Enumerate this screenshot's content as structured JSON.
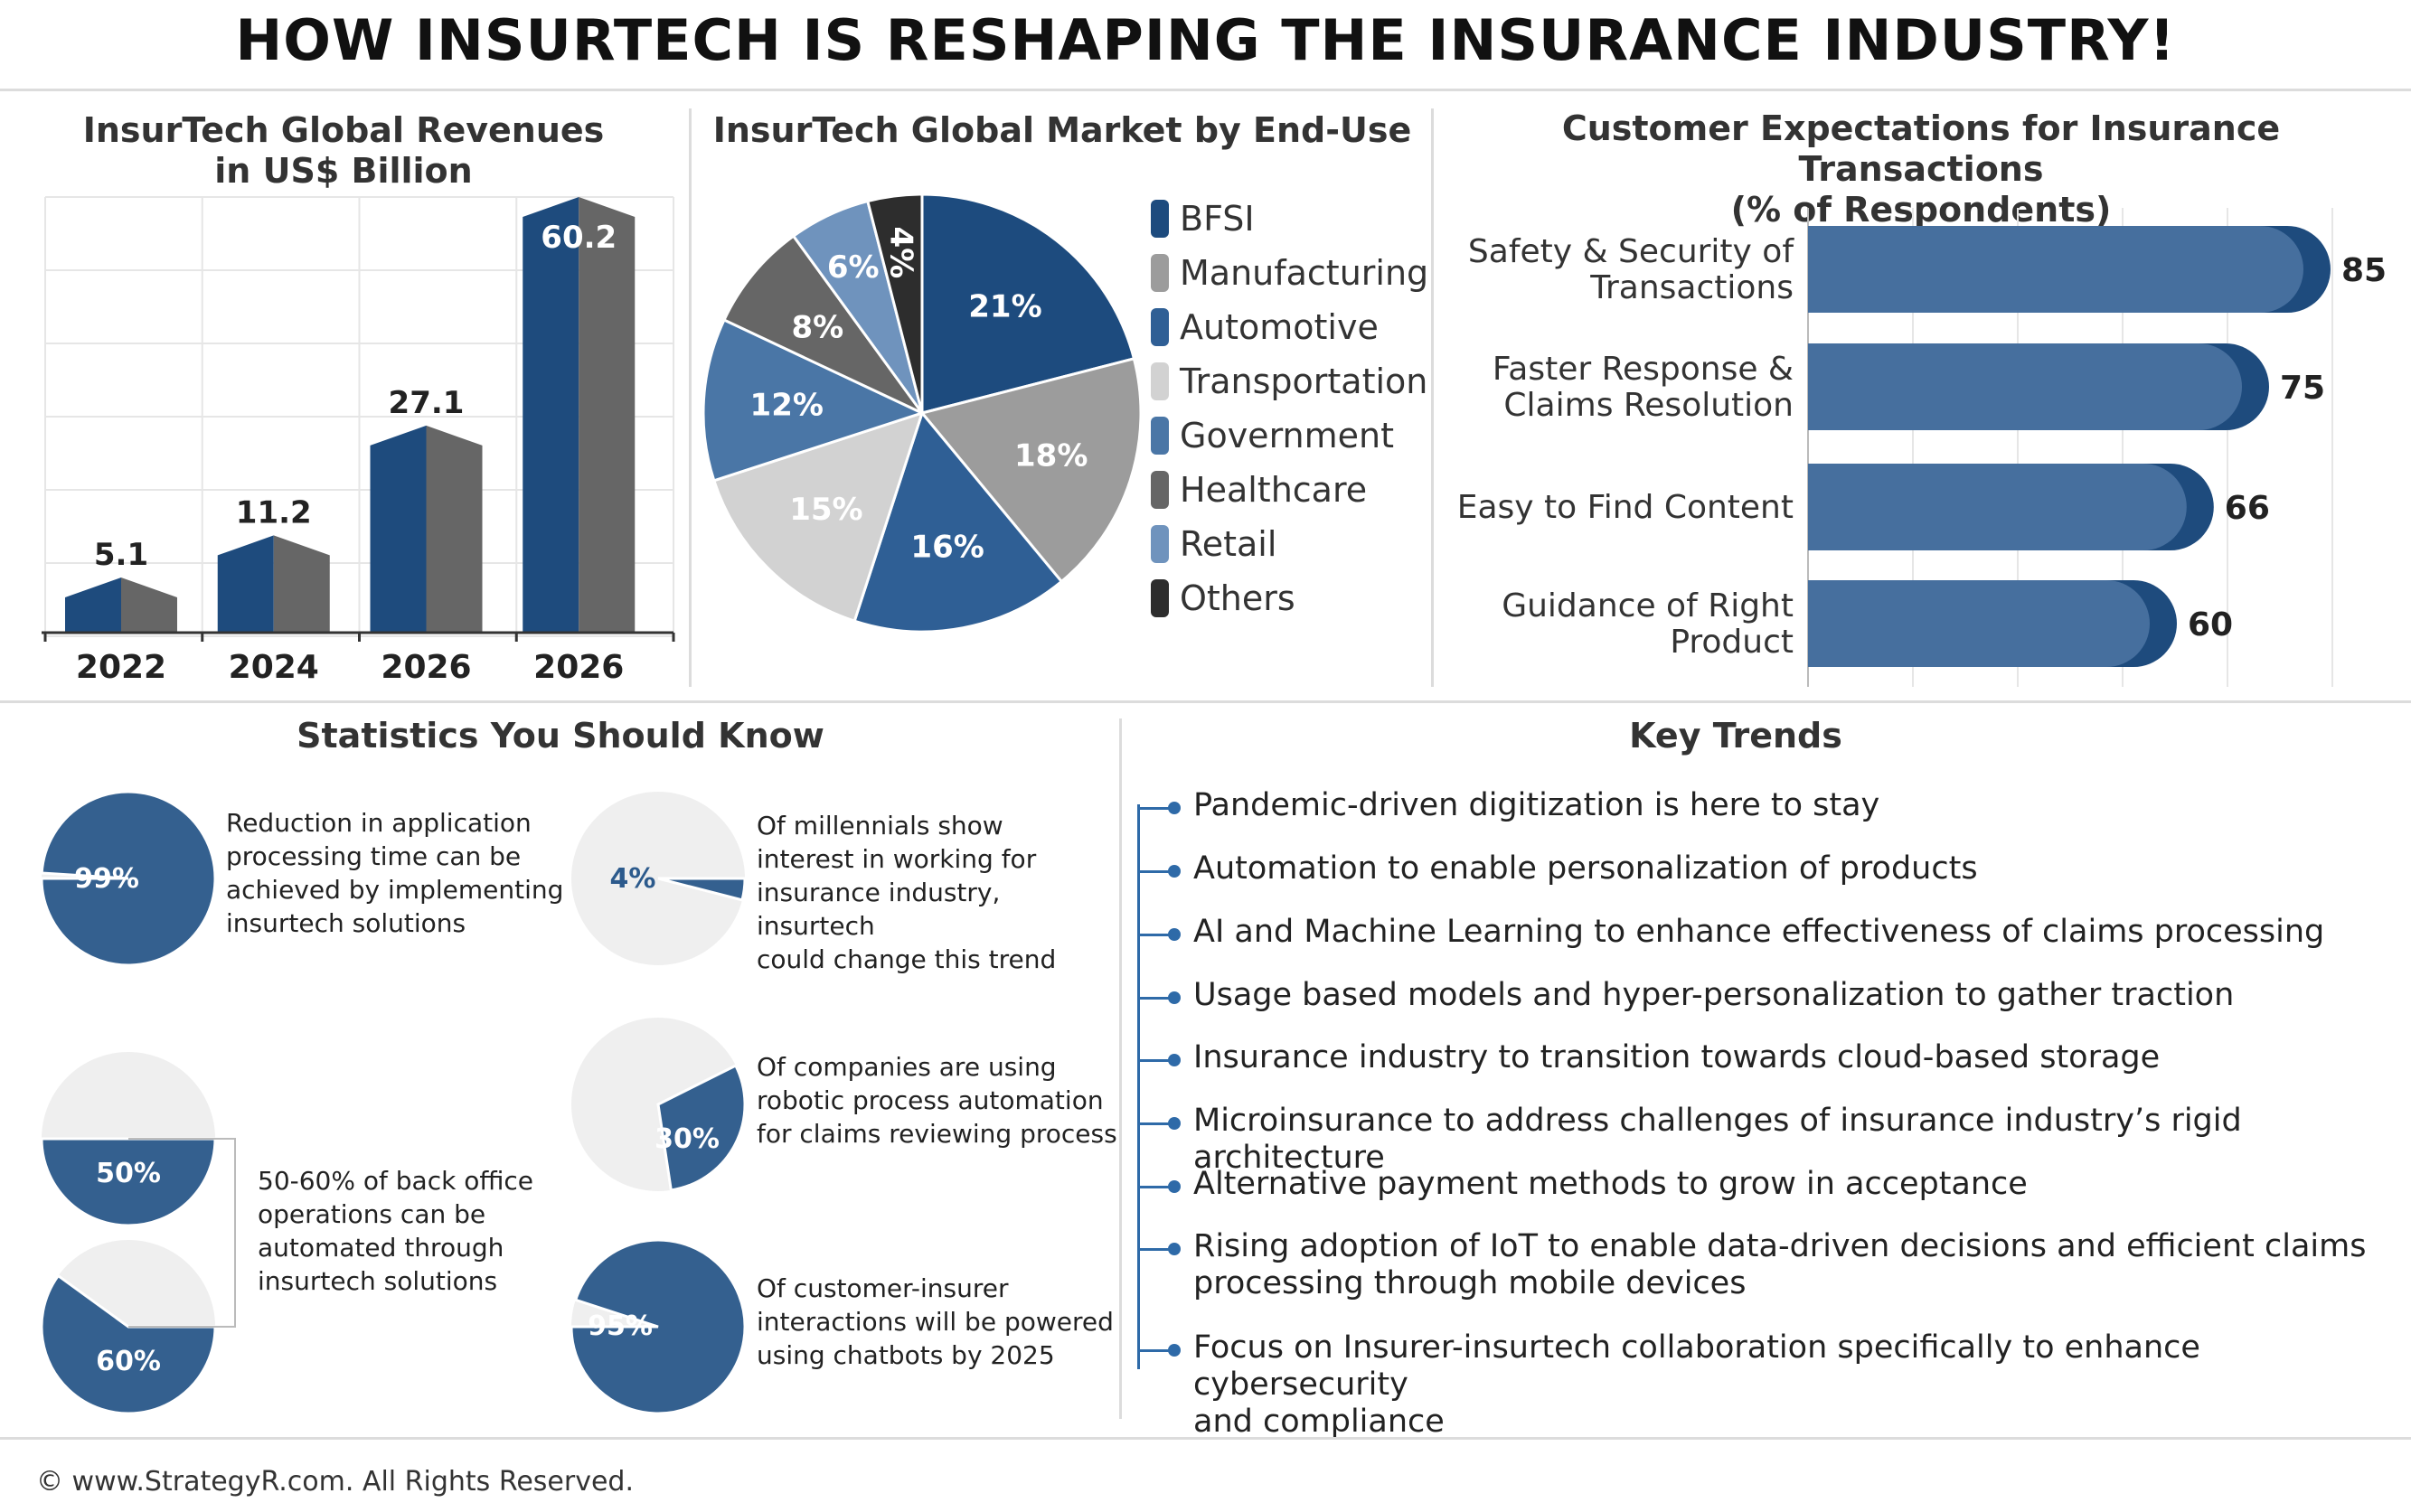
{
  "page_title": "HOW INSURTECH IS RESHAPING THE INSURANCE INDUSTRY!",
  "colors": {
    "navy": "#1e4b7d",
    "gray": "#666666",
    "bar_blue": "#466f9e",
    "light": "#efefef"
  },
  "chart_data": [
    {
      "type": "bar",
      "title_line1": "InsurTech Global Revenues",
      "title_line2": "in US$ Billion",
      "categories": [
        "2022",
        "2024",
        "2026",
        "2026"
      ],
      "values": [
        5.1,
        11.2,
        27.1,
        60.2
      ],
      "ylim": [
        0,
        60.2
      ],
      "grid": true
    },
    {
      "type": "pie",
      "title": "InsurTech Global Market by End-Use",
      "labels": [
        "BFSI",
        "Manufacturing",
        "Automotive",
        "Transportation",
        "Government",
        "Healthcare",
        "Retail",
        "Others"
      ],
      "values": [
        21,
        18,
        16,
        15,
        12,
        8,
        6,
        4
      ],
      "value_labels": [
        "21%",
        "18%",
        "16%",
        "15%",
        "12%",
        "8%",
        "6%",
        "4%"
      ],
      "colors": [
        "#1d4b7e",
        "#9c9c9c",
        "#2f5f95",
        "#d2d2d2",
        "#4a76a6",
        "#666666",
        "#6f93bd",
        "#2d2d2d"
      ],
      "legend_position": "right"
    },
    {
      "type": "bar",
      "orientation": "horizontal",
      "title_line1": "Customer Expectations for Insurance Transactions",
      "title_line2": "(% of Respondents)",
      "categories": [
        [
          "Safety & Security of",
          "Transactions"
        ],
        [
          "Faster Response &",
          "Claims Resolution"
        ],
        [
          "Easy to Find Content"
        ],
        [
          "Guidance of Right",
          "Product"
        ]
      ],
      "values": [
        85,
        75,
        66,
        60
      ],
      "value_labels": [
        "85",
        "75",
        "66",
        "60"
      ],
      "xlim": [
        0,
        100
      ],
      "grid": true
    }
  ],
  "stats": {
    "title": "Statistics You Should Know",
    "items": [
      {
        "pct": 99,
        "label": "99%",
        "lines": [
          "Reduction in application",
          "processing time can be",
          "achieved by implementing",
          "insurtech solutions"
        ]
      },
      {
        "pct": 4,
        "label": "4%",
        "lines": [
          "Of millennials show",
          "interest in working for",
          "insurance industry, insurtech",
          "could change this trend"
        ]
      },
      {
        "pct": 50,
        "label": "50%"
      },
      {
        "pct": 60,
        "label": "60%"
      },
      {
        "pct": 30,
        "label": "30%",
        "lines": [
          "Of companies are using",
          "robotic process automation",
          "for claims reviewing process"
        ]
      },
      {
        "pct": 95,
        "label": "95%",
        "lines": [
          "Of customer-insurer",
          "interactions will be powered",
          "using chatbots by 2025"
        ]
      }
    ],
    "backoffice_lines": [
      "50-60% of back office",
      "operations can be",
      "automated through",
      "insurtech solutions"
    ]
  },
  "trends": {
    "title": "Key Trends",
    "items": [
      [
        "Pandemic-driven digitization is here to stay"
      ],
      [
        "Automation to enable personalization of products"
      ],
      [
        "AI and Machine Learning to enhance effectiveness of claims processing"
      ],
      [
        "Usage based models and hyper-personalization to gather traction"
      ],
      [
        "Insurance industry to transition towards cloud-based storage"
      ],
      [
        "Microinsurance to address challenges of insurance industry’s rigid architecture"
      ],
      [
        "Alternative payment methods to grow in acceptance"
      ],
      [
        "Rising adoption of IoT to enable data-driven decisions and efficient claims",
        "processing through mobile devices"
      ],
      [
        "Focus on Insurer-insurtech collaboration specifically to enhance cybersecurity",
        "and compliance"
      ]
    ]
  },
  "footer": "© www.StrategyR.com. All Rights Reserved."
}
